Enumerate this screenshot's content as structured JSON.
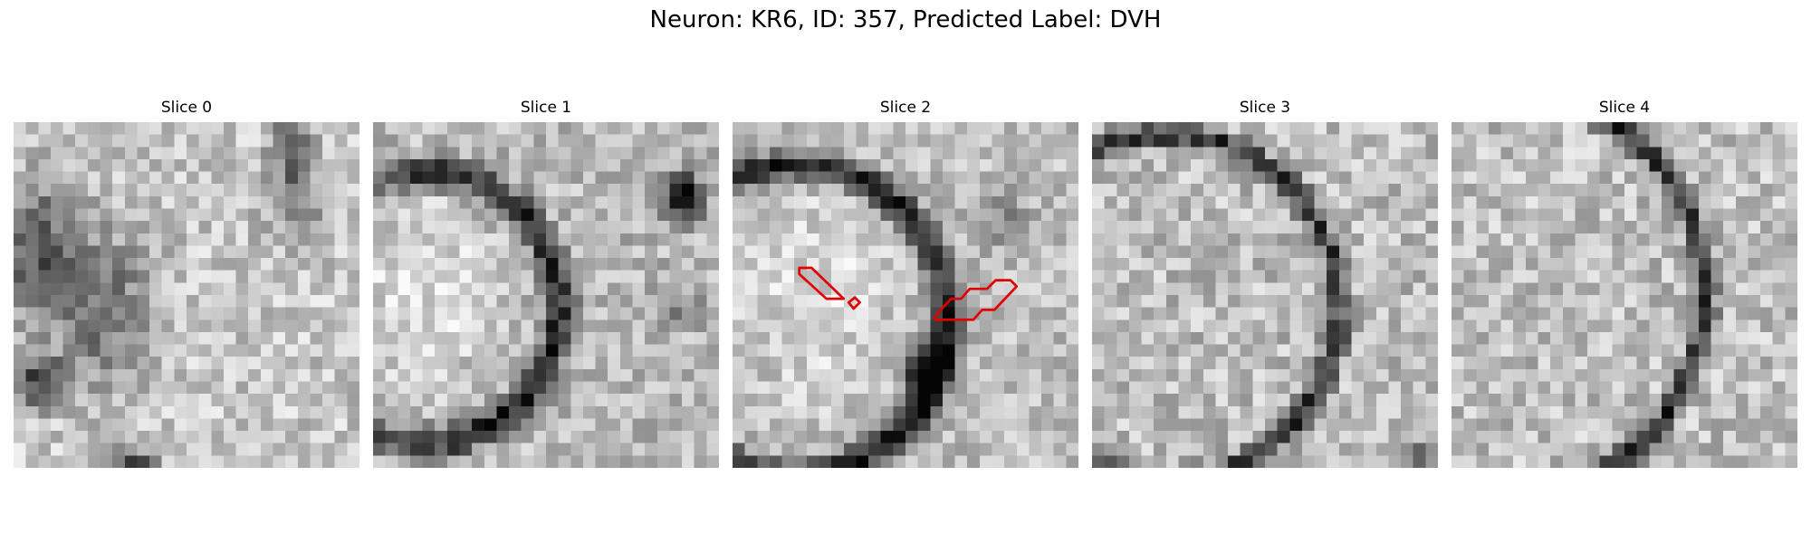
{
  "figure": {
    "suptitle": "Neuron: KR6, ID: 357, Predicted Label: DVH",
    "grid_size": 28,
    "outline_color": "#e30000",
    "slices": [
      {
        "title": "Slice 0",
        "image": "blurry grayscale microscopy patch with mottled noise and dark blobs on left and bottom edges"
      },
      {
        "title": "Slice 1",
        "image": "grayscale patch with dark curved membrane arc around bright cell body on left and dark blob upper right"
      },
      {
        "title": "Slice 2",
        "image": "grayscale patch with dark membrane arc across center, bright cell body left, red outlined ROIs"
      },
      {
        "title": "Slice 3",
        "image": "grayscale patch with thin dark arc membrane right of center"
      },
      {
        "title": "Slice 4",
        "image": "grayscale patch with thin dark arc membrane on right side"
      }
    ]
  }
}
